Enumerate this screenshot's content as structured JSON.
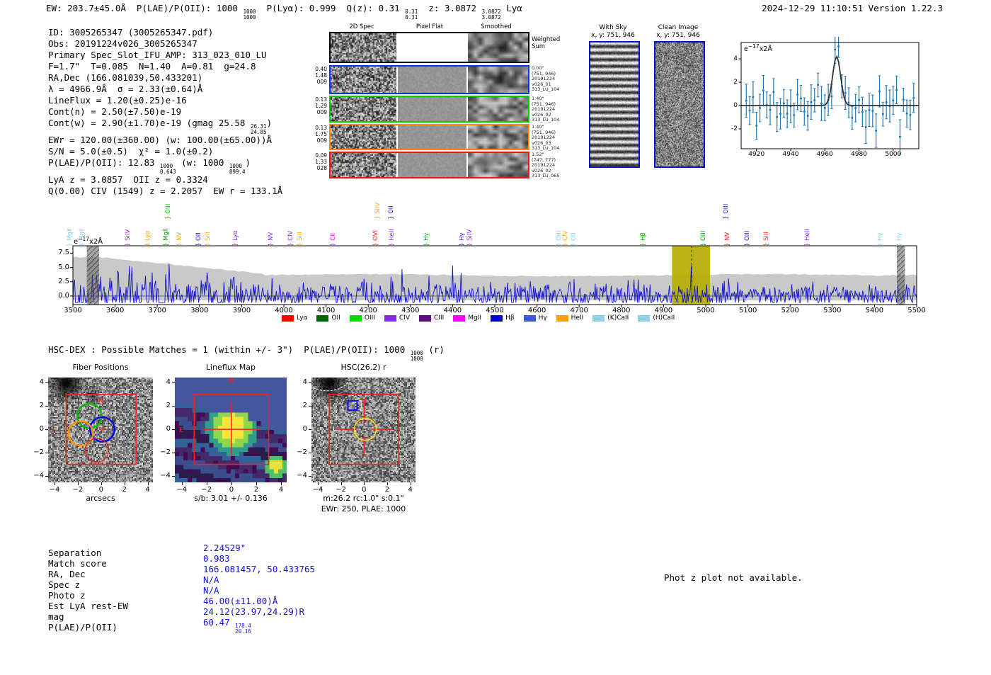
{
  "meta": {
    "timestamp_line": "2024-12-29 11:10:51  Version 1.22.3"
  },
  "header": {
    "segments": [
      {
        "t": "EW: 203.7±45.0Å  P(LAE)/P(OII): 1000 "
      },
      {
        "f": [
          "1000",
          "1000"
        ]
      },
      {
        "t": "  P(Lyα): 0.999  Q(z): 0.31 "
      },
      {
        "f": [
          "0.31",
          "0.31"
        ]
      },
      {
        "t": "  z: 3.0872 "
      },
      {
        "f": [
          "3.0872",
          "3.0872"
        ]
      },
      {
        "t": " Lyα"
      }
    ]
  },
  "info_lines": [
    [
      {
        "t": "ID: 3005265347 (3005265347.pdf)"
      }
    ],
    [
      {
        "t": "Obs: 20191224v026_3005265347"
      }
    ],
    [
      {
        "t": "Primary Spec_Slot_IFU_AMP: 313_023_010_LU"
      }
    ],
    [
      {
        "t": "F=1.7\"  T=0.085  N=1.40  A=0.81  g=24.8"
      }
    ],
    [
      {
        "t": "RA,Dec (166.081039,50.433201)"
      }
    ],
    [
      {
        "t": "λ = 4966.9Å  σ = 2.33(±0.64)Å"
      }
    ],
    [
      {
        "t": "LineFlux = 1.20(±0.25)e-16"
      }
    ],
    [
      {
        "t": "Cont(n) = 2.50(±7.50)e-19"
      }
    ],
    [
      {
        "t": "Cont(w) = 2.90(±1.70)e-19 (gmag 25.58 "
      },
      {
        "f": [
          "26.31",
          "24.85"
        ]
      },
      {
        "t": ")"
      }
    ],
    [
      {
        "t": "EWr = 120.00(±360.00) (w: 100.00(±65.00))Å"
      }
    ],
    [
      {
        "t": "S/N = 5.0(±0.5)  χ² = 1.0(±0.2)"
      }
    ],
    [
      {
        "t": "P(LAE)/P(OII): 12.83 "
      },
      {
        "f": [
          "1000",
          "0.643"
        ]
      },
      {
        "t": " (w: 1000 "
      },
      {
        "f": [
          "1000",
          "899.4"
        ]
      },
      {
        "t": ")"
      }
    ],
    [
      {
        "t": "LyA z = 3.0857  OII z = 0.3324"
      }
    ],
    [
      {
        "t": "Q(0.00) CIV (1549) z = 2.2057  EW r = 133.1Å"
      }
    ]
  ],
  "cutouts": {
    "col_headers": [
      "2D Spec",
      "Pixel Flat",
      "Smoothed"
    ],
    "rows": [
      {
        "border": "#000000",
        "left": [],
        "right": [
          "Weighted",
          "Sum"
        ],
        "big_right": true
      },
      {
        "border": "#0033ff",
        "left": [
          "0.40",
          "1.48",
          "009"
        ],
        "right": [
          "0.00\"",
          "(751, 946)",
          "20191224",
          "v026_01",
          "313_LU_104"
        ]
      },
      {
        "border": "#00cc00",
        "left": [
          "0.13",
          "1.29",
          "009"
        ],
        "right": [
          "1.40\"",
          "(751, 946)",
          "20191224",
          "v026_02",
          "313_LU_104"
        ]
      },
      {
        "border": "#ff8c00",
        "left": [
          "0.13",
          "1.75",
          "009"
        ],
        "right": [
          "1.40\"",
          "(751, 946)",
          "20191224",
          "v026_03",
          "313_LU_104"
        ]
      },
      {
        "border": "#ff1111",
        "left": [
          "0.09",
          "1.33",
          "028"
        ],
        "right": [
          "1.52\"",
          "(747, 777)",
          "20191224",
          "v026_02",
          "313_LU_065"
        ]
      }
    ]
  },
  "sky_panels": [
    {
      "title": "With Sky",
      "coords": "x, y: 751, 946"
    },
    {
      "title": "Clean Image",
      "coords": "x, y: 751, 946"
    }
  ],
  "hsc_line": {
    "segments": [
      {
        "t": "HSC-DEX : Possible Matches = 1 (within +/- 3\")  P(LAE)/P(OII): 1000 "
      },
      {
        "f": [
          "1000",
          "1000"
        ]
      },
      {
        "t": " (r)"
      }
    ]
  },
  "match_table": {
    "value_color": "#1414dc",
    "rows": [
      {
        "label": "Separation",
        "value": [
          {
            "t": "2.24529\""
          }
        ]
      },
      {
        "label": "Match score",
        "value": [
          {
            "t": "0.983"
          }
        ]
      },
      {
        "label": "RA, Dec",
        "value": [
          {
            "t": "166.081457, 50.433765"
          }
        ]
      },
      {
        "label": "Spec z",
        "value": [
          {
            "t": "N/A"
          }
        ]
      },
      {
        "label": "Photo z",
        "value": [
          {
            "t": "N/A"
          }
        ]
      },
      {
        "label": "Est LyA rest-EW",
        "value": [
          {
            "t": "46.00(±11.00)Å"
          }
        ]
      },
      {
        "label": "mag",
        "value": [
          {
            "t": "24.12(23.97,24.29)R"
          }
        ]
      },
      {
        "label": "P(LAE)/P(OII)",
        "value": [
          {
            "t": "60.47 "
          },
          {
            "f": [
              "178.4",
              "20.16"
            ]
          }
        ]
      }
    ]
  },
  "photz_note": "Phot z plot not available.",
  "chart_data": [
    {
      "id": "line_fit_inset",
      "type": "scatter",
      "unit_label": [
        {
          "t": "e"
        },
        {
          "s": "−17"
        },
        {
          "t": "x2Å"
        }
      ],
      "xticks": [
        4920,
        4940,
        4960,
        4980,
        5000
      ],
      "yticks": [
        -2,
        0,
        2,
        4
      ],
      "xlim": [
        4911,
        5015
      ],
      "ylim": [
        -3.7,
        5.4
      ],
      "gaussian_fit": {
        "center": 4966.9,
        "sigma": 2.33,
        "amplitude": 4.2
      },
      "marker_color": "#1f77b4",
      "fit_color": "#333333",
      "points_note": "flux measured every 2Å with ±1σ error bars; baseline noise ~N(0,1) plus Gaussian emission line at 4966.9Å of peak 4.2e-17"
    },
    {
      "id": "full_spectrum",
      "type": "line",
      "unit_label": [
        {
          "t": "e"
        },
        {
          "s": "−17"
        },
        {
          "t": "x2Å"
        }
      ],
      "xlim": [
        3500,
        5500
      ],
      "ylim": [
        -1.5,
        8.8
      ],
      "xticks": [
        3500,
        3600,
        3700,
        3800,
        3900,
        4000,
        4100,
        4200,
        4300,
        4400,
        4500,
        4600,
        4700,
        4800,
        4900,
        5000,
        5100,
        5200,
        5300,
        5400,
        5500
      ],
      "yticks": [
        "7.5",
        "5.0",
        "2.5",
        "0.0"
      ],
      "ytick_vals": [
        7.5,
        5.0,
        2.5,
        0.0
      ],
      "line_color": "#1111cc",
      "error_band_color": "#c9c9c9",
      "emission_peak": {
        "center": 4967,
        "amplitude": 4.3,
        "sigma": 2.4
      },
      "highlight_band": {
        "from": 4920,
        "to": 5010,
        "color": "#b5ae00",
        "dashed_line_at": 4967
      },
      "masked_bands": [
        {
          "from": 3533,
          "to": 3562
        },
        {
          "from": 5453,
          "to": 5472
        }
      ],
      "points_note": "noisy blue spectrum with gray ±1σ envelope declining from ~6.8 at 3500Å to ~3.6 beyond 3950Å; emission spike at 4967Å",
      "legend": [
        {
          "label": "Lyα",
          "color": "#ff0000"
        },
        {
          "label": "OII",
          "color": "#006400"
        },
        {
          "label": "OIII",
          "color": "#00dd00"
        },
        {
          "label": "CIV",
          "color": "#8a2be2"
        },
        {
          "label": "CIII",
          "color": "#5e0a78"
        },
        {
          "label": "MgII",
          "color": "#ff00ff"
        },
        {
          "label": "Hβ",
          "color": "#0000e0"
        },
        {
          "label": "Hγ",
          "color": "#3c5ad6"
        },
        {
          "label": "HeII",
          "color": "#ff9f00"
        },
        {
          "label": "(K)CaII",
          "color": "#8fd0ea"
        },
        {
          "label": "(H)CaII",
          "color": "#8fd0ea"
        }
      ],
      "spectral_lines": [
        {
          "label": "MgII",
          "wave": 3508,
          "color": "#87ceeb",
          "tier": 1
        },
        {
          "label": "MgII",
          "wave": 3537,
          "color": "#87ceeb",
          "tier": 1
        },
        {
          "label": "SiIV",
          "wave": 3646,
          "color": "#993399",
          "tier": 1
        },
        {
          "label": "Lyα",
          "wave": 3693,
          "color": "#ffa500",
          "tier": 1
        },
        {
          "label": "OIII",
          "wave": 3742,
          "color": "#00cc00",
          "tier": 2
        },
        {
          "label": "MgII",
          "wave": 3737,
          "color": "#00aa00",
          "tier": 1
        },
        {
          "label": "NV",
          "wave": 3769,
          "color": "#ffa500",
          "tier": 1
        },
        {
          "label": "OII",
          "wave": 3814,
          "color": "#2222ee",
          "tier": 1
        },
        {
          "label": "SiII",
          "wave": 3836,
          "color": "#ffa500",
          "tier": 1
        },
        {
          "label": "Lyα",
          "wave": 3901,
          "color": "#8a2be2",
          "tier": 1
        },
        {
          "label": "NV",
          "wave": 3985,
          "color": "#8a2be2",
          "tier": 1
        },
        {
          "label": "CIV",
          "wave": 4032,
          "color": "#8a2be2",
          "tier": 1
        },
        {
          "label": "SiII",
          "wave": 4054,
          "color": "#ffa500",
          "tier": 1
        },
        {
          "label": "CII",
          "wave": 4133,
          "color": "#ff00ff",
          "tier": 1
        },
        {
          "label": "OVI",
          "wave": 4233,
          "color": "#ff2222",
          "tier": 1
        },
        {
          "label": "SiIV",
          "wave": 4238,
          "color": "#ffa500",
          "tier": 2
        },
        {
          "label": "OII",
          "wave": 4270,
          "color": "#2222ee",
          "tier": 2
        },
        {
          "label": "HeII",
          "wave": 4272,
          "color": "#8a2be2",
          "tier": 1
        },
        {
          "label": "Hγ",
          "wave": 4354,
          "color": "#00aa00",
          "tier": 1
        },
        {
          "label": "Hγ",
          "wave": 4438,
          "color": "#2222ee",
          "tier": 1
        },
        {
          "label": "SiIV",
          "wave": 4457,
          "color": "#8a2be2",
          "tier": 1
        },
        {
          "label": "OIII",
          "wave": 4667,
          "color": "#87ceeb",
          "tier": 1
        },
        {
          "label": "CIV",
          "wave": 4683,
          "color": "#ffa500",
          "tier": 1
        },
        {
          "label": "OII",
          "wave": 4703,
          "color": "#87ceeb",
          "tier": 1
        },
        {
          "label": "Hβ",
          "wave": 4868,
          "color": "#00aa00",
          "tier": 1
        },
        {
          "label": "OIII",
          "wave": 5010,
          "color": "#00aa00",
          "tier": 1
        },
        {
          "label": "OIII",
          "wave": 5064,
          "color": "#2222ee",
          "tier": 2
        },
        {
          "label": "NV",
          "wave": 5067,
          "color": "#ff2222",
          "tier": 1
        },
        {
          "label": "OIII",
          "wave": 5114,
          "color": "#2222ee",
          "tier": 1
        },
        {
          "label": "SiII",
          "wave": 5159,
          "color": "#ff2222",
          "tier": 1
        },
        {
          "label": "HeII",
          "wave": 5257,
          "color": "#8a2be2",
          "tier": 1
        },
        {
          "label": "Hγ",
          "wave": 5430,
          "color": "#87ceeb",
          "tier": 1
        },
        {
          "label": "Hγ",
          "wave": 5475,
          "color": "#87ceeb",
          "tier": 1
        }
      ]
    },
    {
      "id": "fiber_positions",
      "type": "image",
      "title": "Fiber Positions",
      "xlabel": "arcsecs",
      "xticks": [
        -4,
        -2,
        0,
        2,
        4
      ],
      "yticks": [
        4,
        2,
        0,
        -2,
        -4
      ],
      "compass": [
        "N",
        "E"
      ],
      "aperture_box_arcsec": [
        -3,
        3
      ],
      "fibers": [
        {
          "color": "#00bb00",
          "x": -1.0,
          "y": 1.15,
          "r": 1.05
        },
        {
          "color": "#0000ee",
          "x": 0.1,
          "y": 0.0,
          "r": 1.05
        },
        {
          "color": "#ff9900",
          "x": -1.75,
          "y": -0.35,
          "r": 1.05
        },
        {
          "color": "#ee2222",
          "x": -0.35,
          "y": -1.8,
          "r": 1.0
        }
      ]
    },
    {
      "id": "lineflux_map",
      "type": "heatmap",
      "title": "Lineflux Map",
      "xlabel": "s/b: 3.01 +/- 0.136",
      "xticks": [
        -4,
        -2,
        0,
        2,
        4
      ],
      "yticks": [
        4,
        2,
        0,
        -2,
        -4
      ],
      "compass": [
        "N",
        "E"
      ]
    },
    {
      "id": "hsc_r_cutout",
      "type": "image",
      "title": "HSC(26.2) r",
      "xlabel": "m:26.2 rc:1.0\"  s:0.1\"",
      "xlabel2": "EWr: 250, PLAE: 1000",
      "xticks": [
        -4,
        -2,
        0,
        2,
        4
      ],
      "yticks": [
        4,
        2,
        0,
        -2,
        -4
      ],
      "compass": [
        "N",
        "E"
      ]
    }
  ]
}
